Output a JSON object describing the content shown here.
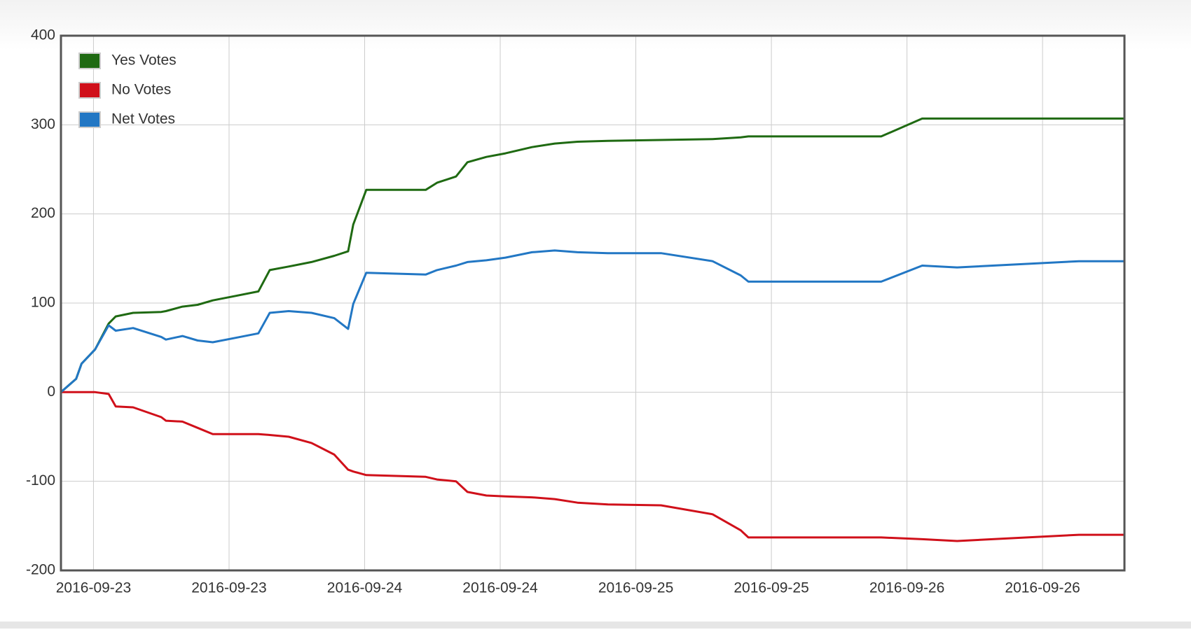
{
  "chart_data": {
    "type": "line",
    "x": [
      0,
      0.056,
      0.076,
      0.126,
      0.176,
      0.202,
      0.266,
      0.37,
      0.387,
      0.448,
      0.504,
      0.56,
      0.644,
      0.728,
      0.77,
      0.84,
      0.924,
      1.008,
      1.059,
      1.078,
      1.126,
      1.345,
      1.387,
      1.457,
      1.499,
      1.569,
      1.639,
      1.737,
      1.821,
      1.905,
      2.017,
      2.213,
      2.403,
      2.507,
      2.535,
      3.025,
      3.176,
      3.305,
      3.754,
      3.922
    ],
    "series": [
      {
        "name": "Yes Votes",
        "color": "#1f6a12",
        "values": [
          0,
          15,
          32,
          48,
          77,
          85,
          89,
          90,
          91,
          96,
          98,
          103,
          108,
          113,
          137,
          141,
          146,
          153,
          158,
          188,
          227,
          227,
          235,
          242,
          258,
          264,
          268,
          275,
          279,
          281,
          282,
          283,
          284,
          286,
          287,
          287,
          307,
          307,
          307,
          307
        ]
      },
      {
        "name": "No Votes",
        "color": "#d0101a",
        "values": [
          0,
          0,
          0,
          0,
          -2,
          -16,
          -17,
          -28,
          -32,
          -33,
          -40,
          -47,
          -47,
          -47,
          -48,
          -50,
          -57,
          -70,
          -87,
          -89,
          -93,
          -95,
          -98,
          -100,
          -112,
          -116,
          -117,
          -118,
          -120,
          -124,
          -126,
          -127,
          -137,
          -155,
          -163,
          -163,
          -165,
          -167,
          -160,
          -160
        ]
      },
      {
        "name": "Net Votes",
        "color": "#2277c4",
        "values": [
          0,
          15,
          32,
          48,
          75,
          69,
          72,
          62,
          59,
          63,
          58,
          56,
          61,
          66,
          89,
          91,
          89,
          83,
          71,
          99,
          134,
          132,
          137,
          142,
          146,
          148,
          151,
          157,
          159,
          157,
          156,
          156,
          147,
          131,
          124,
          124,
          142,
          140,
          147,
          147
        ]
      }
    ],
    "xlim": [
      0,
      3.922
    ],
    "xticks": [
      {
        "value": 0.12,
        "label": "2016-09-23"
      },
      {
        "value": 0.62,
        "label": "2016-09-23"
      },
      {
        "value": 1.12,
        "label": "2016-09-24"
      },
      {
        "value": 1.62,
        "label": "2016-09-24"
      },
      {
        "value": 2.12,
        "label": "2016-09-25"
      },
      {
        "value": 2.62,
        "label": "2016-09-25"
      },
      {
        "value": 3.12,
        "label": "2016-09-26"
      },
      {
        "value": 3.62,
        "label": "2016-09-26"
      }
    ],
    "ylim": [
      -200,
      400
    ],
    "yticks": [
      -200,
      -100,
      0,
      100,
      200,
      300,
      400
    ],
    "grid": true,
    "legend": "top-left"
  }
}
